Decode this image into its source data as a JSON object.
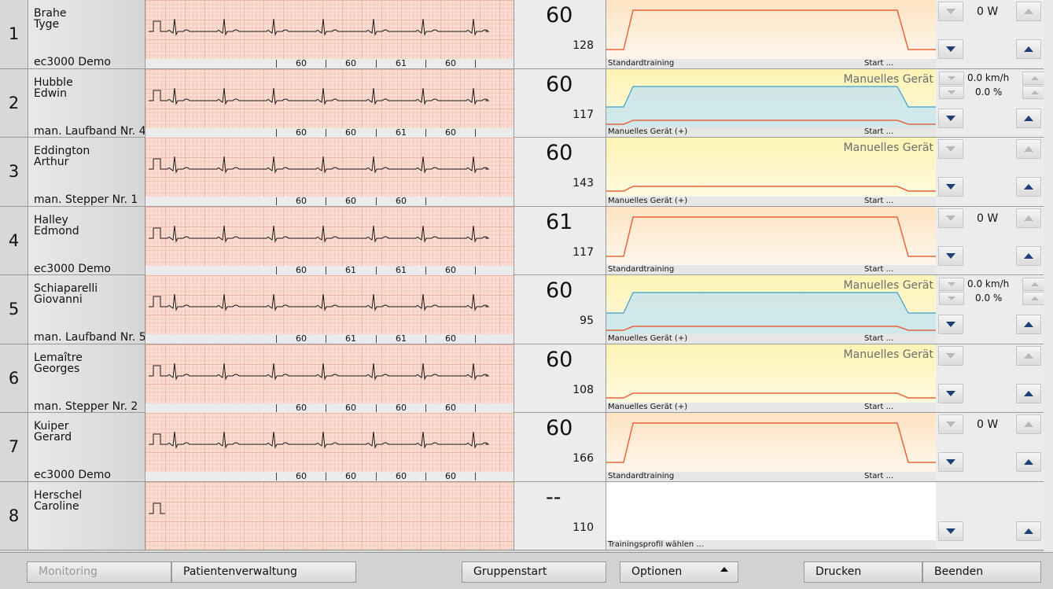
{
  "rows": [
    {
      "num": "1",
      "last": "Brahe",
      "first": "Tyge",
      "device": "ec3000 Demo",
      "hr_big": "60",
      "hr_small": "128",
      "hr_marks": [
        "60",
        "60",
        "61",
        "60"
      ],
      "profile_label": "Standardtraining",
      "start_label": "Start ...",
      "mode": "ergo",
      "watt": "0 W"
    },
    {
      "num": "2",
      "last": "Hubble",
      "first": "Edwin",
      "device": "man. Laufband Nr. 4",
      "hr_big": "60",
      "hr_small": "117",
      "hr_marks": [
        "60",
        "60",
        "61",
        "60"
      ],
      "profile_label": "Manuelles Gerät (+)",
      "start_label": "Start ...",
      "mode": "treadmill",
      "manual_title": "Manuelles Gerät",
      "speed": "0.0 km/h",
      "incline": "0.0 %"
    },
    {
      "num": "3",
      "last": "Eddington",
      "first": "Arthur",
      "device": "man. Stepper Nr. 1",
      "hr_big": "60",
      "hr_small": "143",
      "hr_marks": [
        "60",
        "60",
        "60"
      ],
      "profile_label": "Manuelles Gerät (+)",
      "start_label": "Start ...",
      "mode": "stepper",
      "manual_title": "Manuelles Gerät"
    },
    {
      "num": "4",
      "last": "Halley",
      "first": "Edmond",
      "device": "ec3000 Demo",
      "hr_big": "61",
      "hr_small": "117",
      "hr_marks": [
        "60",
        "61",
        "61",
        "60"
      ],
      "profile_label": "Standardtraining",
      "start_label": "Start ...",
      "mode": "ergo",
      "watt": "0 W"
    },
    {
      "num": "5",
      "last": "Schiaparelli",
      "first": "Giovanni",
      "device": "man. Laufband Nr. 5",
      "hr_big": "60",
      "hr_small": "95",
      "hr_marks": [
        "60",
        "61",
        "61",
        "60"
      ],
      "profile_label": "Manuelles Gerät (+)",
      "start_label": "Start ...",
      "mode": "treadmill",
      "manual_title": "Manuelles Gerät",
      "speed": "0.0 km/h",
      "incline": "0.0 %"
    },
    {
      "num": "6",
      "last": "Lemaître",
      "first": "Georges",
      "device": "man. Stepper Nr. 2",
      "hr_big": "60",
      "hr_small": "108",
      "hr_marks": [
        "60",
        "60",
        "60",
        "60"
      ],
      "profile_label": "Manuelles Gerät (+)",
      "start_label": "Start ...",
      "mode": "stepper",
      "manual_title": "Manuelles Gerät"
    },
    {
      "num": "7",
      "last": "Kuiper",
      "first": "Gerard",
      "device": "ec3000 Demo",
      "hr_big": "60",
      "hr_small": "166",
      "hr_marks": [
        "60",
        "60",
        "60",
        "60"
      ],
      "profile_label": "Standardtraining",
      "start_label": "Start ...",
      "mode": "ergo",
      "watt": "0 W"
    },
    {
      "num": "8",
      "last": "Herschel",
      "first": "Caroline",
      "device": "",
      "hr_big": "--",
      "hr_small": "110",
      "hr_marks": [],
      "profile_label": "Trainingsprofil wählen ...",
      "start_label": "",
      "mode": "empty"
    }
  ],
  "footer": {
    "monitoring": "Monitoring",
    "patientenverwaltung": "Patientenverwaltung",
    "gruppenstart": "Gruppenstart",
    "optionen": "Optionen",
    "drucken": "Drucken",
    "beenden": "Beenden"
  },
  "colors": {
    "profile_line": "#e8643c",
    "speed_line": "#3b9fd1",
    "ecg_line": "#1a1a1a"
  }
}
